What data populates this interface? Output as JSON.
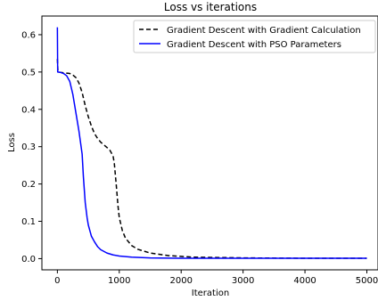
{
  "chart_data": {
    "type": "line",
    "title": "Loss vs iterations",
    "xlabel": "Iteration",
    "ylabel": "Loss",
    "xlim": [
      -250,
      5180
    ],
    "ylim": [
      -0.03,
      0.65
    ],
    "xticks": [
      0,
      1000,
      2000,
      3000,
      4000,
      5000
    ],
    "yticks": [
      0.0,
      0.1,
      0.2,
      0.3,
      0.4,
      0.5,
      0.6
    ],
    "xtick_labels": [
      "0",
      "1000",
      "2000",
      "3000",
      "4000",
      "5000"
    ],
    "ytick_labels": [
      "0.0",
      "0.1",
      "0.2",
      "0.3",
      "0.4",
      "0.5",
      "0.6"
    ],
    "grid": false,
    "legend_position": "top-right",
    "series": [
      {
        "name": "Gradient Descent with Gradient Calculation",
        "color": "#000000",
        "linestyle": "dashed",
        "points": [
          [
            0,
            0.535
          ],
          [
            10,
            0.5
          ],
          [
            50,
            0.499
          ],
          [
            100,
            0.498
          ],
          [
            150,
            0.497
          ],
          [
            200,
            0.496
          ],
          [
            250,
            0.492
          ],
          [
            300,
            0.485
          ],
          [
            350,
            0.47
          ],
          [
            400,
            0.445
          ],
          [
            450,
            0.41
          ],
          [
            500,
            0.38
          ],
          [
            550,
            0.355
          ],
          [
            600,
            0.335
          ],
          [
            650,
            0.322
          ],
          [
            700,
            0.312
          ],
          [
            750,
            0.305
          ],
          [
            800,
            0.298
          ],
          [
            850,
            0.29
          ],
          [
            900,
            0.275
          ],
          [
            920,
            0.255
          ],
          [
            950,
            0.2
          ],
          [
            980,
            0.14
          ],
          [
            1000,
            0.11
          ],
          [
            1050,
            0.075
          ],
          [
            1100,
            0.055
          ],
          [
            1200,
            0.035
          ],
          [
            1300,
            0.025
          ],
          [
            1500,
            0.015
          ],
          [
            1800,
            0.008
          ],
          [
            2200,
            0.004
          ],
          [
            3000,
            0.002
          ],
          [
            4000,
            0.001
          ],
          [
            5000,
            0.001
          ]
        ]
      },
      {
        "name": "Gradient Descent with PSO Parameters",
        "color": "#0000ff",
        "linestyle": "solid",
        "points": [
          [
            0,
            0.62
          ],
          [
            5,
            0.5
          ],
          [
            50,
            0.499
          ],
          [
            100,
            0.496
          ],
          [
            150,
            0.49
          ],
          [
            200,
            0.475
          ],
          [
            250,
            0.44
          ],
          [
            300,
            0.39
          ],
          [
            350,
            0.34
          ],
          [
            400,
            0.28
          ],
          [
            420,
            0.22
          ],
          [
            450,
            0.15
          ],
          [
            480,
            0.11
          ],
          [
            500,
            0.09
          ],
          [
            550,
            0.06
          ],
          [
            600,
            0.045
          ],
          [
            650,
            0.032
          ],
          [
            700,
            0.024
          ],
          [
            800,
            0.015
          ],
          [
            900,
            0.01
          ],
          [
            1000,
            0.007
          ],
          [
            1200,
            0.004
          ],
          [
            1500,
            0.002
          ],
          [
            2000,
            0.001
          ],
          [
            3000,
            0.001
          ],
          [
            5000,
            0.001
          ]
        ]
      }
    ]
  }
}
